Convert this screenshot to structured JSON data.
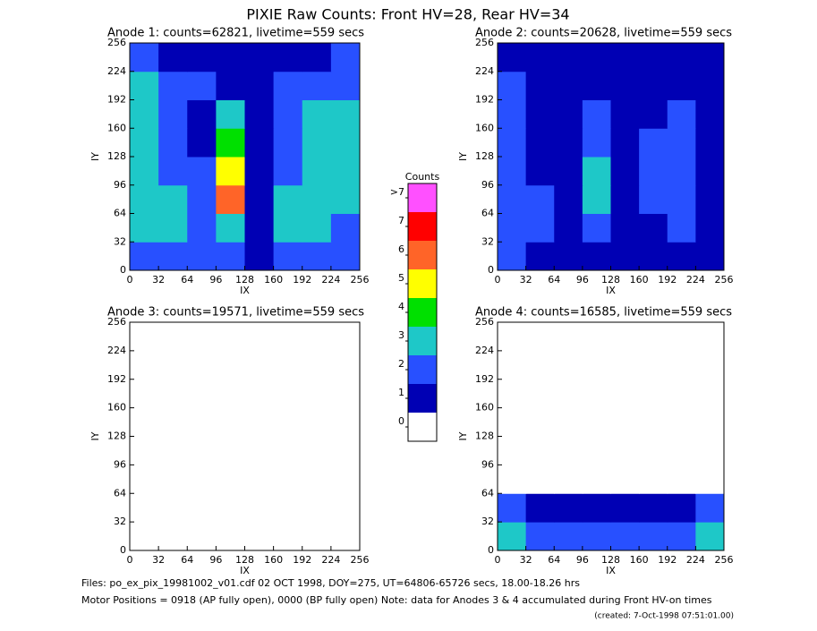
{
  "title": "PIXIE Raw Counts:  Front HV=28, Rear HV=34",
  "chart_data": [
    {
      "type": "heatmap",
      "title": "Anode 1: counts=62821, livetime=559 secs",
      "xlabel": "IX",
      "ylabel": "IY",
      "xlim": [
        0,
        256
      ],
      "ylim": [
        0,
        256
      ],
      "xticks": [
        0,
        32,
        64,
        96,
        128,
        160,
        192,
        224,
        256
      ],
      "yticks": [
        0,
        32,
        64,
        96,
        128,
        160,
        192,
        224,
        256
      ],
      "z": [
        [
          2,
          2,
          2,
          2,
          1,
          2,
          2,
          2
        ],
        [
          3,
          3,
          2,
          3,
          1,
          3,
          3,
          2
        ],
        [
          3,
          3,
          2,
          6,
          1,
          3,
          3,
          3
        ],
        [
          3,
          2,
          2,
          5,
          1,
          2,
          3,
          3
        ],
        [
          3,
          2,
          1,
          4,
          1,
          2,
          3,
          3
        ],
        [
          3,
          2,
          1,
          3,
          1,
          2,
          3,
          3
        ],
        [
          3,
          2,
          2,
          1,
          1,
          2,
          2,
          2
        ],
        [
          2,
          1,
          1,
          1,
          1,
          1,
          1,
          2
        ]
      ]
    },
    {
      "type": "heatmap",
      "title": "Anode 2: counts=20628, livetime=559 secs",
      "xlabel": "IX",
      "ylabel": "IY",
      "xlim": [
        0,
        256
      ],
      "ylim": [
        0,
        256
      ],
      "xticks": [
        0,
        32,
        64,
        96,
        128,
        160,
        192,
        224,
        256
      ],
      "yticks": [
        0,
        32,
        64,
        96,
        128,
        160,
        192,
        224,
        256
      ],
      "z": [
        [
          2,
          1,
          1,
          1,
          1,
          1,
          1,
          1
        ],
        [
          2,
          2,
          1,
          2,
          1,
          1,
          2,
          1
        ],
        [
          2,
          2,
          1,
          3,
          1,
          2,
          2,
          1
        ],
        [
          2,
          1,
          1,
          3,
          1,
          2,
          2,
          1
        ],
        [
          2,
          1,
          1,
          2,
          1,
          2,
          2,
          1
        ],
        [
          2,
          1,
          1,
          2,
          1,
          1,
          2,
          1
        ],
        [
          2,
          1,
          1,
          1,
          1,
          1,
          1,
          1
        ],
        [
          1,
          1,
          1,
          1,
          1,
          1,
          1,
          1
        ]
      ]
    },
    {
      "type": "heatmap",
      "title": "Anode 3: counts=19571, livetime=559 secs",
      "xlabel": "IX",
      "ylabel": "IY",
      "xlim": [
        0,
        256
      ],
      "ylim": [
        0,
        256
      ],
      "xticks": [
        0,
        32,
        64,
        96,
        128,
        160,
        192,
        224,
        256
      ],
      "yticks": [
        0,
        32,
        64,
        96,
        128,
        160,
        192,
        224,
        256
      ],
      "z": [
        [
          0,
          0,
          0,
          0,
          0,
          0,
          0,
          0
        ],
        [
          0,
          0,
          0,
          0,
          0,
          0,
          0,
          0
        ],
        [
          0,
          0,
          0,
          0,
          0,
          0,
          0,
          0
        ],
        [
          0,
          0,
          0,
          0,
          0,
          0,
          0,
          0
        ],
        [
          0,
          0,
          0,
          0,
          0,
          0,
          0,
          0
        ],
        [
          0,
          0,
          0,
          0,
          0,
          0,
          0,
          0
        ],
        [
          0,
          0,
          0,
          0,
          0,
          0,
          0,
          0
        ],
        [
          0,
          0,
          0,
          0,
          0,
          0,
          0,
          0
        ]
      ]
    },
    {
      "type": "heatmap",
      "title": "Anode 4: counts=16585, livetime=559 secs",
      "xlabel": "IX",
      "ylabel": "IY",
      "xlim": [
        0,
        256
      ],
      "ylim": [
        0,
        256
      ],
      "xticks": [
        0,
        32,
        64,
        96,
        128,
        160,
        192,
        224,
        256
      ],
      "yticks": [
        0,
        32,
        64,
        96,
        128,
        160,
        192,
        224,
        256
      ],
      "z": [
        [
          3,
          2,
          2,
          2,
          2,
          2,
          2,
          3
        ],
        [
          2,
          1,
          1,
          1,
          1,
          1,
          1,
          2
        ],
        [
          0,
          0,
          0,
          0,
          0,
          0,
          0,
          0
        ],
        [
          0,
          0,
          0,
          0,
          0,
          0,
          0,
          0
        ],
        [
          0,
          0,
          0,
          0,
          0,
          0,
          0,
          0
        ],
        [
          0,
          0,
          0,
          0,
          0,
          0,
          0,
          0
        ],
        [
          0,
          0,
          0,
          0,
          0,
          0,
          0,
          0
        ],
        [
          0,
          0,
          0,
          0,
          0,
          0,
          0,
          0
        ]
      ]
    }
  ],
  "colorbar": {
    "title": "Counts",
    "colors": [
      "#ffffff",
      "#0000b4",
      "#2850ff",
      "#1ec8c8",
      "#00e000",
      "#ffff00",
      "#ff6428",
      "#ff0000",
      "#ff50ff"
    ],
    "ticks": [
      0,
      1,
      2,
      3,
      4,
      5,
      6,
      7,
      {
        "value": 8,
        "label": ">7"
      }
    ]
  },
  "footer": [
    "Files: po_ex_pix_19981002_v01.cdf   02 OCT 1998, DOY=275, UT=64806-65726 secs, 18.00-18.26 hrs",
    "Motor Positions = 0918 (AP fully open), 0000 (BP fully open)    Note: data for Anodes 3 & 4 accumulated during Front HV-on times",
    "(created:  7-Oct-1998 07:51:01.00)"
  ]
}
